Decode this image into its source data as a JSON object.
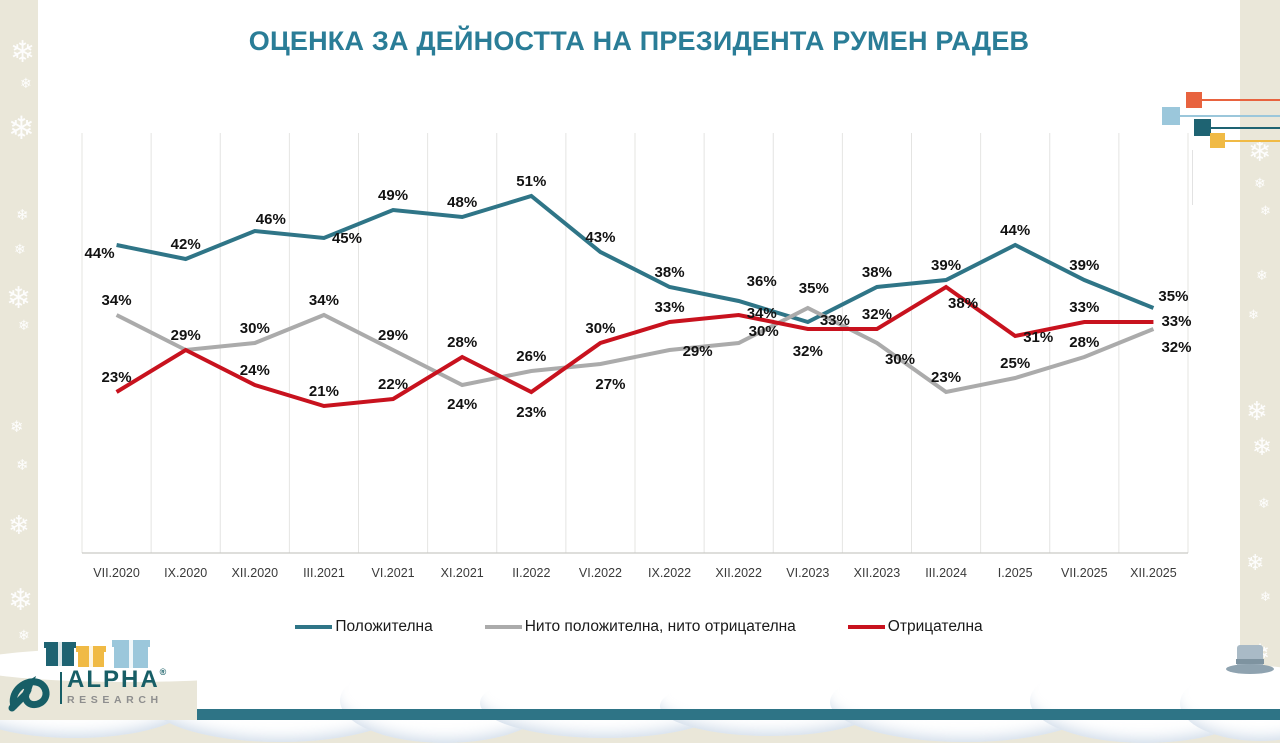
{
  "title": "ОЦЕНКА ЗА ДЕЙНОСТТА НА ПРЕЗИДЕНТА РУМЕН РАДЕВ",
  "chart_data": {
    "type": "line",
    "categories": [
      "VII.2020",
      "IX.2020",
      "XII.2020",
      "III.2021",
      "VI.2021",
      "XI.2021",
      "II.2022",
      "VI.2022",
      "IX.2022",
      "XII.2022",
      "VI.2023",
      "XII.2023",
      "III.2024",
      "I.2025",
      "VII.2025",
      "XII.2025"
    ],
    "series": [
      {
        "name": "Положителна",
        "color": "#2F7587",
        "values": [
          44,
          42,
          46,
          45,
          49,
          48,
          51,
          43,
          38,
          36,
          33,
          38,
          39,
          44,
          39,
          35
        ],
        "labels": [
          "44%",
          "42%",
          "46%",
          "45%",
          "49%",
          "48%",
          "51%",
          "43%",
          "38%",
          "36%",
          "33%",
          "38%",
          "39%",
          "44%",
          "39%",
          "35%"
        ]
      },
      {
        "name": "Нито положителна, нито отрицателна",
        "color": "#ABABAB",
        "values": [
          34,
          29,
          30,
          34,
          29,
          24,
          26,
          27,
          29,
          30,
          35,
          30,
          23,
          25,
          28,
          32
        ],
        "labels": [
          "34%",
          null,
          "30%",
          "34%",
          "29%",
          "24%",
          "26%",
          "27%",
          "29%",
          "30%",
          "35%",
          "30%",
          "23%",
          "25%",
          "28%",
          "32%"
        ]
      },
      {
        "name": "Отрицателна",
        "color": "#C8121E",
        "values": [
          23,
          29,
          24,
          21,
          22,
          28,
          23,
          30,
          33,
          34,
          32,
          32,
          38,
          31,
          33,
          33
        ],
        "labels": [
          "23%",
          "29%",
          "24%",
          "21%",
          "22%",
          "28%",
          "23%",
          "30%",
          "33%",
          "34%",
          "32%",
          "32%",
          "38%",
          "31%",
          "33%",
          "33%"
        ]
      }
    ],
    "ylim": [
      0,
      60
    ],
    "grid": "vertical",
    "legend_position": "bottom",
    "xlabel": "",
    "ylabel": ""
  },
  "legend": {
    "items": [
      {
        "label": "Положителна"
      },
      {
        "label": "Нито положителна, нито отрицателна"
      },
      {
        "label": "Отрицателна"
      }
    ]
  },
  "branding": {
    "logo_text": "ALPHA",
    "logo_registered": "®",
    "logo_subtext": "RESEARCH"
  },
  "colors": {
    "title": "#2A7D97",
    "positive_line": "#2F7587",
    "neutral_line": "#ABABAB",
    "negative_line": "#C8121E",
    "accent_orange": "#E8633F",
    "accent_light_blue": "#9BC7DB",
    "accent_dark_teal": "#1E6372",
    "accent_yellow": "#F0BA45",
    "bottom_bar": "#2E7486",
    "logo_teal": "#175E66",
    "logo_gray": "#8E8E8E",
    "background_beige": "#EAE7D9"
  }
}
